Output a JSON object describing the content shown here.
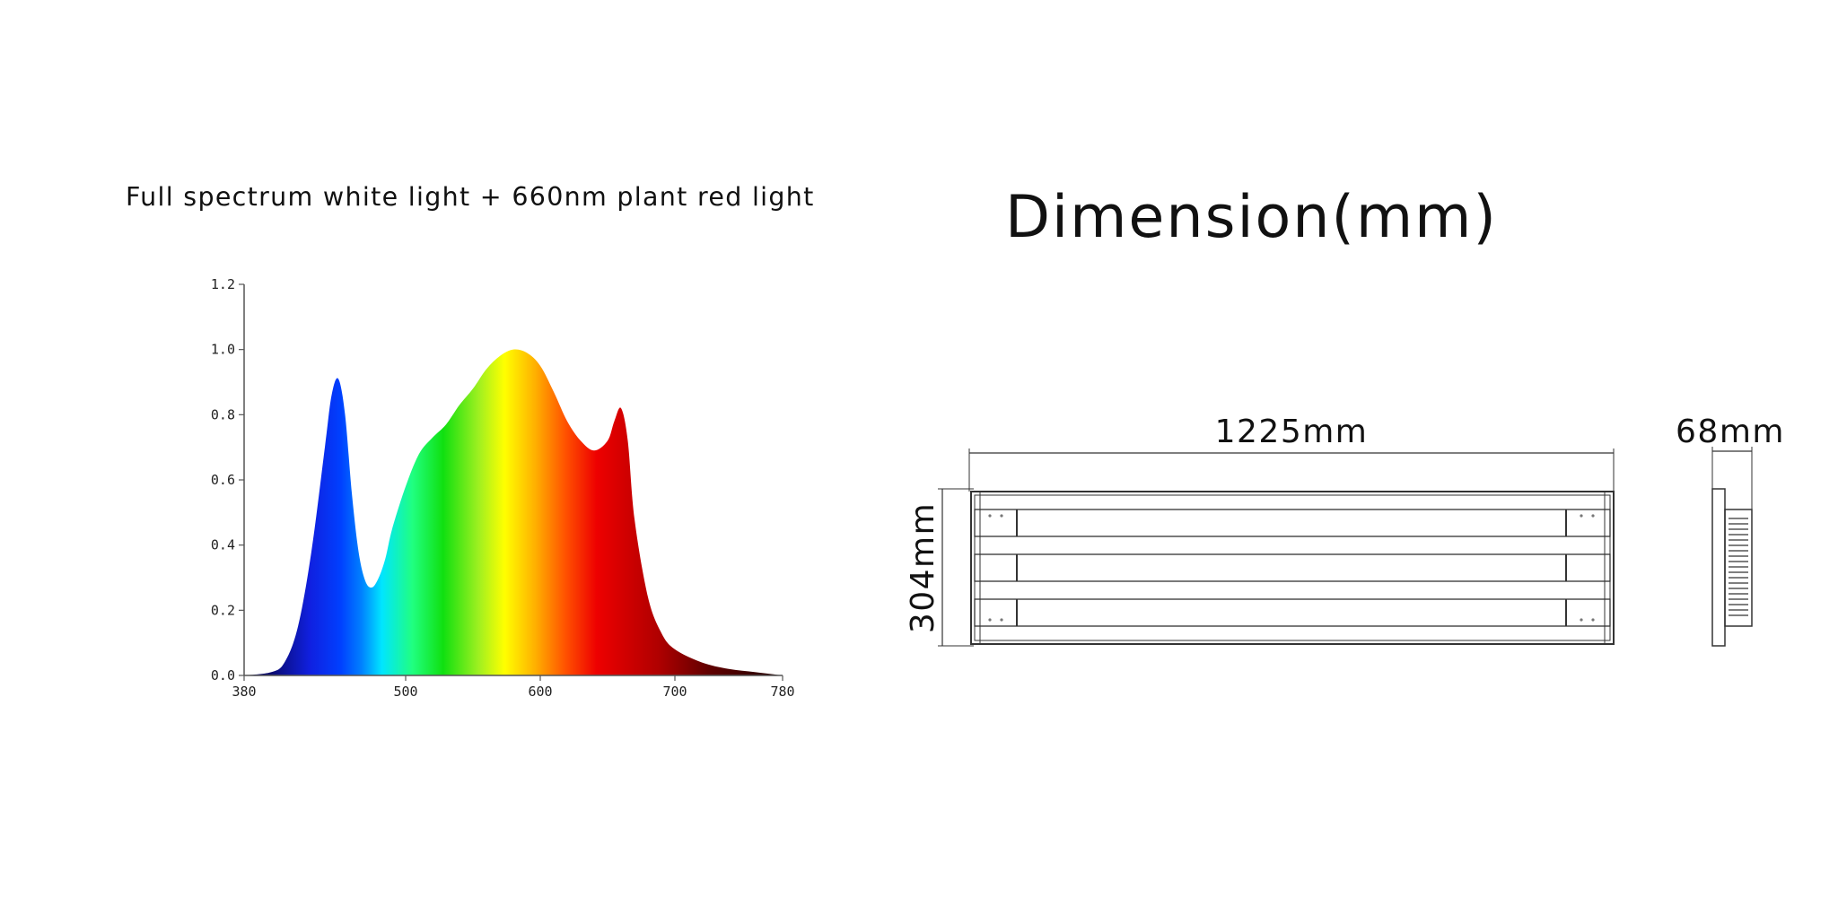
{
  "spectrum_title": "Full spectrum white light + 660nm plant red light",
  "dimension_title": "Dimension(mm)",
  "dimensions": {
    "length_label": "1225mm",
    "width_label": "304mm",
    "height_label": "68mm"
  },
  "chart_data": {
    "type": "area",
    "title": "Full spectrum white light + 660nm plant red light",
    "xlabel": "",
    "ylabel": "",
    "xlim": [
      380,
      780
    ],
    "ylim": [
      0,
      1.2
    ],
    "x_ticks": [
      "380",
      "500",
      "600",
      "700",
      "780"
    ],
    "y_ticks": [
      "0.0",
      "0.2",
      "0.4",
      "0.6",
      "0.8",
      "1.0",
      "1.2"
    ],
    "grid": false,
    "fill": "visible-spectrum color gradient",
    "series": [
      {
        "x": [
          380,
          400,
          410,
          420,
          430,
          440,
          445,
          450,
          455,
          460,
          465,
          470,
          475,
          480,
          485,
          490,
          500,
          510,
          520,
          530,
          540,
          550,
          560,
          570,
          580,
          590,
          600,
          610,
          620,
          630,
          640,
          650,
          655,
          660,
          665,
          670,
          680,
          690,
          700,
          720,
          740,
          760,
          780
        ],
        "y": [
          0.0,
          0.01,
          0.04,
          0.15,
          0.38,
          0.7,
          0.86,
          0.91,
          0.8,
          0.56,
          0.38,
          0.29,
          0.27,
          0.3,
          0.36,
          0.45,
          0.58,
          0.68,
          0.73,
          0.77,
          0.83,
          0.88,
          0.94,
          0.98,
          1.0,
          0.99,
          0.95,
          0.87,
          0.78,
          0.72,
          0.69,
          0.72,
          0.78,
          0.82,
          0.72,
          0.48,
          0.24,
          0.13,
          0.08,
          0.04,
          0.02,
          0.01,
          0.0
        ]
      }
    ]
  }
}
